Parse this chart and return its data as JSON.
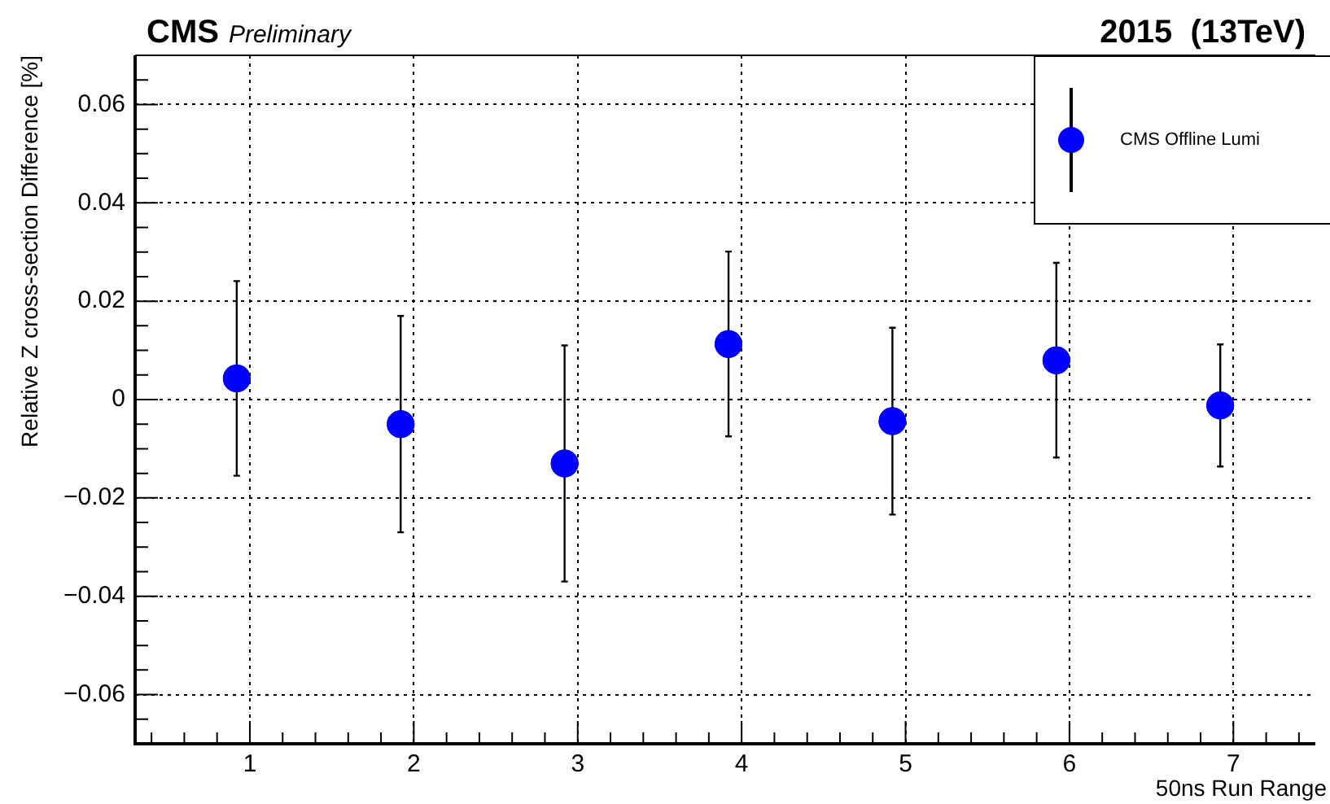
{
  "chart_data": {
    "type": "scatter",
    "title": "CMS",
    "subtitle": "Preliminary",
    "annotations": [
      "2015  (13TeV)"
    ],
    "xlabel": "50ns Run Range",
    "ylabel": "Relative Z cross-section Difference [%]",
    "x": [
      0.92,
      1.92,
      2.92,
      3.92,
      4.92,
      5.92,
      6.92
    ],
    "series": [
      {
        "name": "CMS Offline Lumi",
        "color": "#0000ff",
        "values": [
          0.0043,
          -0.005,
          -0.013,
          0.0113,
          -0.0044,
          0.008,
          -0.0012
        ],
        "errors": [
          0.0198,
          0.022,
          0.024,
          0.0188,
          0.019,
          0.0198,
          0.0124
        ]
      }
    ],
    "xlim": [
      0.3,
      7.5
    ],
    "xticks": [
      1,
      2,
      3,
      4,
      5,
      6,
      7
    ],
    "ylim": [
      -0.07,
      0.07
    ],
    "yticks": [
      -0.06,
      -0.04,
      -0.02,
      0,
      0.02,
      0.04,
      0.06
    ],
    "grid": true,
    "legend": "top right",
    "marker": "circle"
  }
}
